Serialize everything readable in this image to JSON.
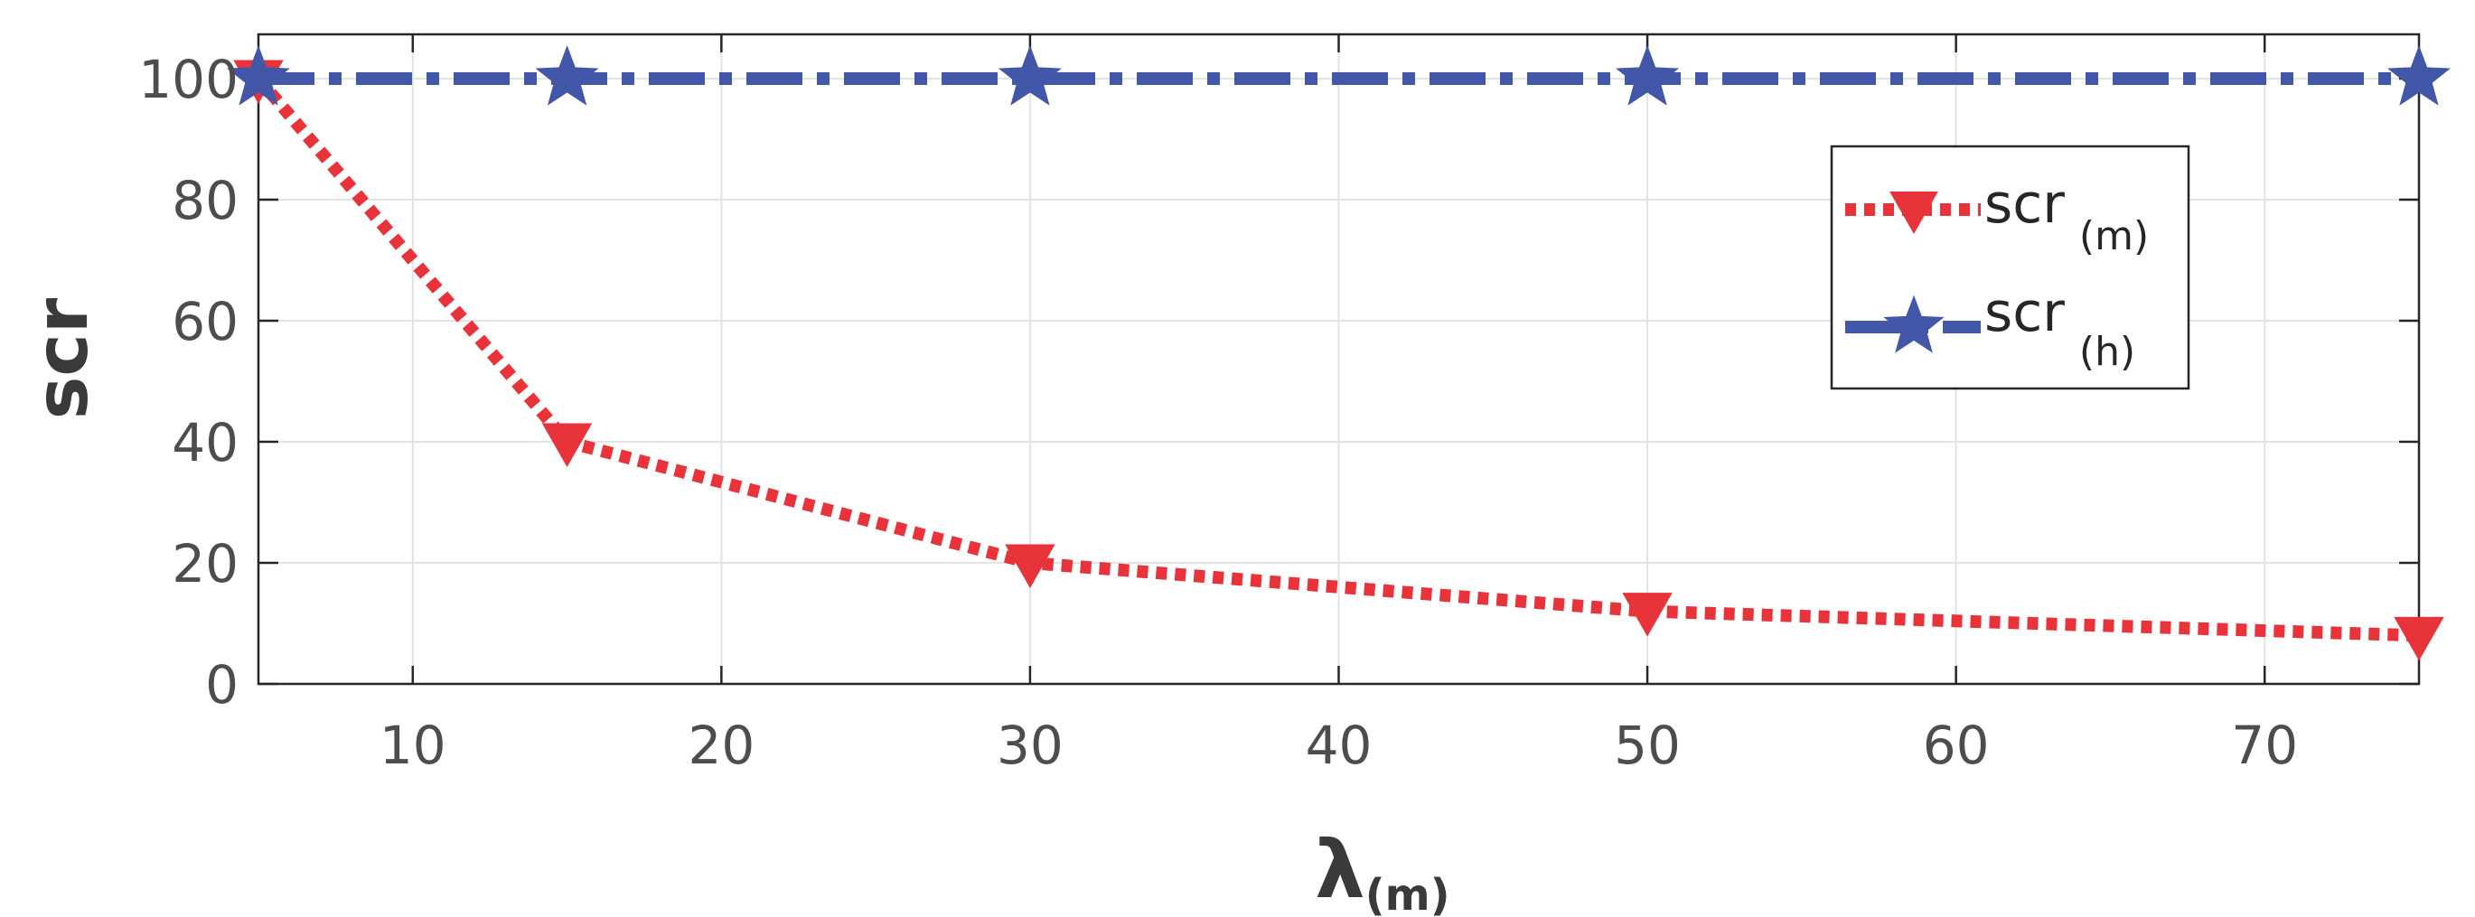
{
  "chart_data": {
    "type": "line",
    "x": [
      5,
      15,
      30,
      50,
      75
    ],
    "xlim": [
      5,
      75
    ],
    "ylim": [
      0,
      100
    ],
    "xticks": [
      10,
      20,
      30,
      40,
      50,
      60,
      70
    ],
    "yticks": [
      0,
      20,
      40,
      60,
      80,
      100
    ],
    "xlabel": {
      "main": "λ",
      "sub": "(m)"
    },
    "ylabel": "scr",
    "grid": true,
    "legend_position": "top-right",
    "series": [
      {
        "name_main": "scr",
        "name_sub": "(m)",
        "values": [
          100,
          40,
          20,
          12,
          8
        ],
        "color": "#e8333a",
        "marker": "triangle-down",
        "line": "dotted"
      },
      {
        "name_main": "scr",
        "name_sub": "(h)",
        "values": [
          100,
          100,
          100,
          100,
          100
        ],
        "color": "#4357a8",
        "marker": "star",
        "line": "dash-dot"
      }
    ]
  }
}
